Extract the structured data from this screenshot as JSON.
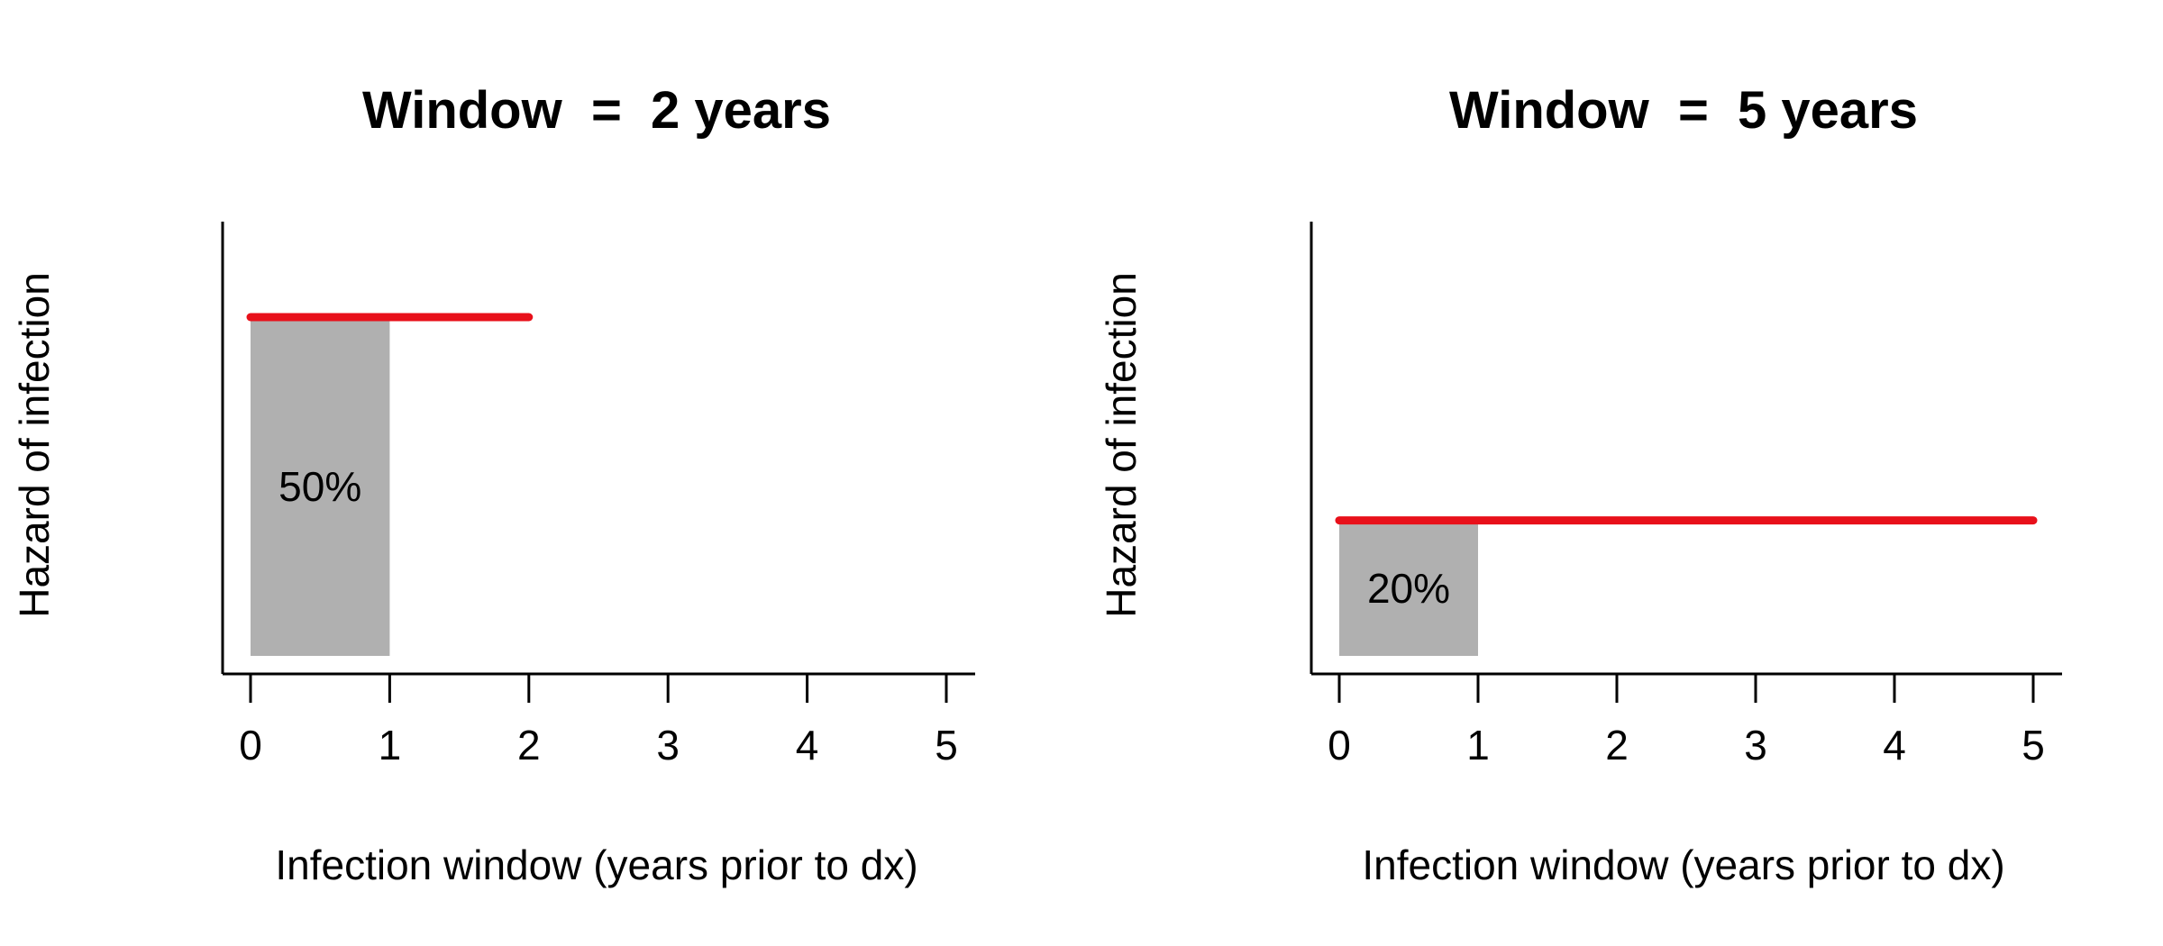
{
  "chart_data": [
    {
      "type": "bar",
      "title": "Window  =  2 years",
      "xlabel": "Infection window (years prior to dx)",
      "ylabel": "Hazard of infection",
      "xlim": [
        0,
        5
      ],
      "x_ticks": [
        0,
        1,
        2,
        3,
        4,
        5
      ],
      "x_tick_labels": [
        "0",
        "1",
        "2",
        "3",
        "4",
        "5"
      ],
      "window_years": 2,
      "hazard": 0.5,
      "shaded_interval": [
        0,
        1
      ],
      "shaded_label": "50%",
      "hazard_line": {
        "x": [
          0,
          2
        ],
        "y": 0.5
      },
      "colors": {
        "line": "#e8101a",
        "box": "#b0b0b0",
        "axis": "#000000"
      }
    },
    {
      "type": "bar",
      "title": "Window  =  5 years",
      "xlabel": "Infection window (years prior to dx)",
      "ylabel": "Hazard of infection",
      "xlim": [
        0,
        5
      ],
      "x_ticks": [
        0,
        1,
        2,
        3,
        4,
        5
      ],
      "x_tick_labels": [
        "0",
        "1",
        "2",
        "3",
        "4",
        "5"
      ],
      "window_years": 5,
      "hazard": 0.2,
      "shaded_interval": [
        0,
        1
      ],
      "shaded_label": "20%",
      "hazard_line": {
        "x": [
          0,
          5
        ],
        "y": 0.2
      },
      "colors": {
        "line": "#e8101a",
        "box": "#b0b0b0",
        "axis": "#000000"
      }
    }
  ]
}
